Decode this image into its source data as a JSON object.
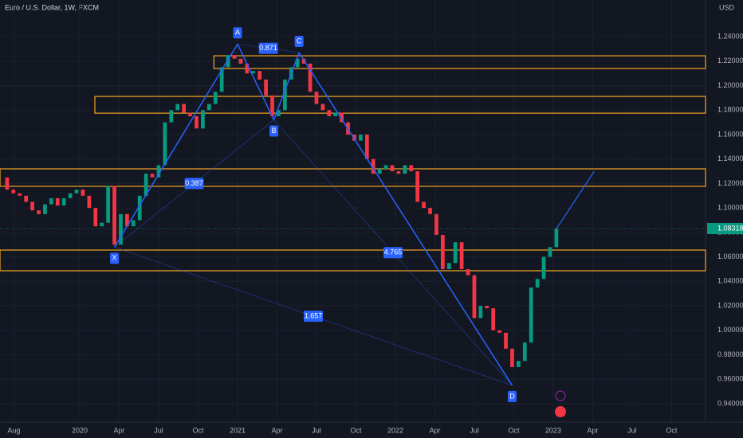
{
  "chart_data": {
    "type": "candlestick",
    "title": "Euro / U.S. Dollar, 1W, FXCM",
    "currency": "USD",
    "x": [
      2019.5,
      2019.54,
      2019.58,
      2019.62,
      2019.66,
      2019.7,
      2019.74,
      2019.78,
      2019.82,
      2019.86,
      2019.9,
      2019.94,
      2019.98,
      2020.02,
      2020.06,
      2020.1,
      2020.14,
      2020.18,
      2020.22,
      2020.26,
      2020.3,
      2020.34,
      2020.38,
      2020.42,
      2020.46,
      2020.5,
      2020.54,
      2020.58,
      2020.62,
      2020.66,
      2020.7,
      2020.74,
      2020.78,
      2020.82,
      2020.86,
      2020.9,
      2020.94,
      2020.98,
      2021.02,
      2021.06,
      2021.1,
      2021.14,
      2021.18,
      2021.22,
      2021.26,
      2021.3,
      2021.34,
      2021.38,
      2021.42,
      2021.46,
      2021.5,
      2021.54,
      2021.58,
      2021.62,
      2021.66,
      2021.7,
      2021.74,
      2021.78,
      2021.82,
      2021.86,
      2021.9,
      2021.94,
      2021.98,
      2022.02,
      2022.06,
      2022.1,
      2022.14,
      2022.18,
      2022.22,
      2022.26,
      2022.3,
      2022.34,
      2022.38,
      2022.42,
      2022.46,
      2022.5,
      2022.54,
      2022.58,
      2022.62,
      2022.66,
      2022.7,
      2022.74,
      2022.78,
      2022.82,
      2022.86,
      2022.9,
      2022.94,
      2022.98,
      2023.02
    ],
    "closes": [
      1.125,
      1.115,
      1.112,
      1.11,
      1.105,
      1.098,
      1.095,
      1.103,
      1.108,
      1.102,
      1.108,
      1.112,
      1.115,
      1.11,
      1.1,
      1.085,
      1.088,
      1.118,
      1.07,
      1.095,
      1.085,
      1.09,
      1.11,
      1.128,
      1.125,
      1.135,
      1.17,
      1.18,
      1.185,
      1.178,
      1.175,
      1.165,
      1.18,
      1.185,
      1.195,
      1.215,
      1.225,
      1.222,
      1.218,
      1.21,
      1.212,
      1.205,
      1.192,
      1.175,
      1.18,
      1.205,
      1.215,
      1.222,
      1.218,
      1.195,
      1.185,
      1.18,
      1.175,
      1.178,
      1.17,
      1.16,
      1.155,
      1.16,
      1.14,
      1.128,
      1.132,
      1.135,
      1.13,
      1.128,
      1.135,
      1.13,
      1.105,
      1.1,
      1.095,
      1.078,
      1.05,
      1.055,
      1.072,
      1.05,
      1.045,
      1.01,
      1.02,
      1.018,
      1.0,
      0.998,
      0.985,
      0.97,
      0.975,
      0.99,
      1.035,
      1.042,
      1.06,
      1.068,
      1.083
    ],
    "up_color": "#089981",
    "down_color": "#f23645",
    "current_price": 1.08318,
    "xlim": [
      2019.495,
      2023.965
    ],
    "xticks": [
      {
        "value": 2019.583,
        "label": "Aug"
      },
      2020,
      {
        "value": 2020.25,
        "label": "Apr"
      },
      {
        "value": 2020.5,
        "label": "Jul"
      },
      {
        "value": 2020.75,
        "label": "Oct"
      },
      2021,
      {
        "value": 2021.25,
        "label": "Apr"
      },
      {
        "value": 2021.5,
        "label": "Jul"
      },
      {
        "value": 2021.75,
        "label": "Oct"
      },
      2022,
      {
        "value": 2022.25,
        "label": "Apr"
      },
      {
        "value": 2022.5,
        "label": "Jul"
      },
      {
        "value": 2022.75,
        "label": "Oct"
      },
      2023,
      {
        "value": 2023.25,
        "label": "Apr"
      },
      {
        "value": 2023.5,
        "label": "Jul"
      },
      {
        "value": 2023.75,
        "label": "Oct"
      }
    ],
    "ylim": [
      0.925,
      1.27
    ],
    "yticks": [
      {
        "value": 1.24,
        "label": "1.24000"
      },
      {
        "value": 1.22,
        "label": "1.22000"
      },
      {
        "value": 1.2,
        "label": "1.20000"
      },
      {
        "value": 1.18,
        "label": "1.18000"
      },
      {
        "value": 1.16,
        "label": "1.16000"
      },
      {
        "value": 1.14,
        "label": "1.14000"
      },
      {
        "value": 1.12,
        "label": "1.12000"
      },
      {
        "value": 1.1,
        "label": "1.10000"
      },
      {
        "value": 1.08,
        "label": "1.08000"
      },
      {
        "value": 1.06,
        "label": "1.06000"
      },
      {
        "value": 1.04,
        "label": "1.04000"
      },
      {
        "value": 1.02,
        "label": "1.02000"
      },
      {
        "value": 1.0,
        "label": "1.00000"
      },
      {
        "value": 0.98,
        "label": "0.98000"
      },
      {
        "value": 0.96,
        "label": "0.96000"
      },
      {
        "value": 0.94,
        "label": "0.94000"
      }
    ],
    "grid": true,
    "zones": [
      {
        "x0": 2020.85,
        "y": [
          1.2244,
          1.214
        ]
      },
      {
        "x0": 2020.096,
        "y": [
          1.1912,
          1.1775
        ]
      },
      {
        "x0": 2019.495,
        "y": [
          1.132,
          1.1177
        ]
      },
      {
        "x0": 2019.495,
        "y": [
          1.0656,
          1.0487
        ]
      }
    ],
    "zone_color": "#f5a623",
    "pattern": {
      "color": "#2962ff",
      "points": [
        {
          "label": "X",
          "x": 2020.22,
          "y": 1.068
        },
        {
          "label": "A",
          "x": 2021.0,
          "y": 1.234
        },
        {
          "label": "B",
          "x": 2021.23,
          "y": 1.172
        },
        {
          "label": "C",
          "x": 2021.39,
          "y": 1.227
        },
        {
          "label": "D",
          "x": 2022.74,
          "y": 0.955
        }
      ],
      "ratios": [
        0.387,
        0.871,
        4.765,
        1.657
      ],
      "projection": {
        "x": 2023.26,
        "y": 1.13
      }
    }
  }
}
